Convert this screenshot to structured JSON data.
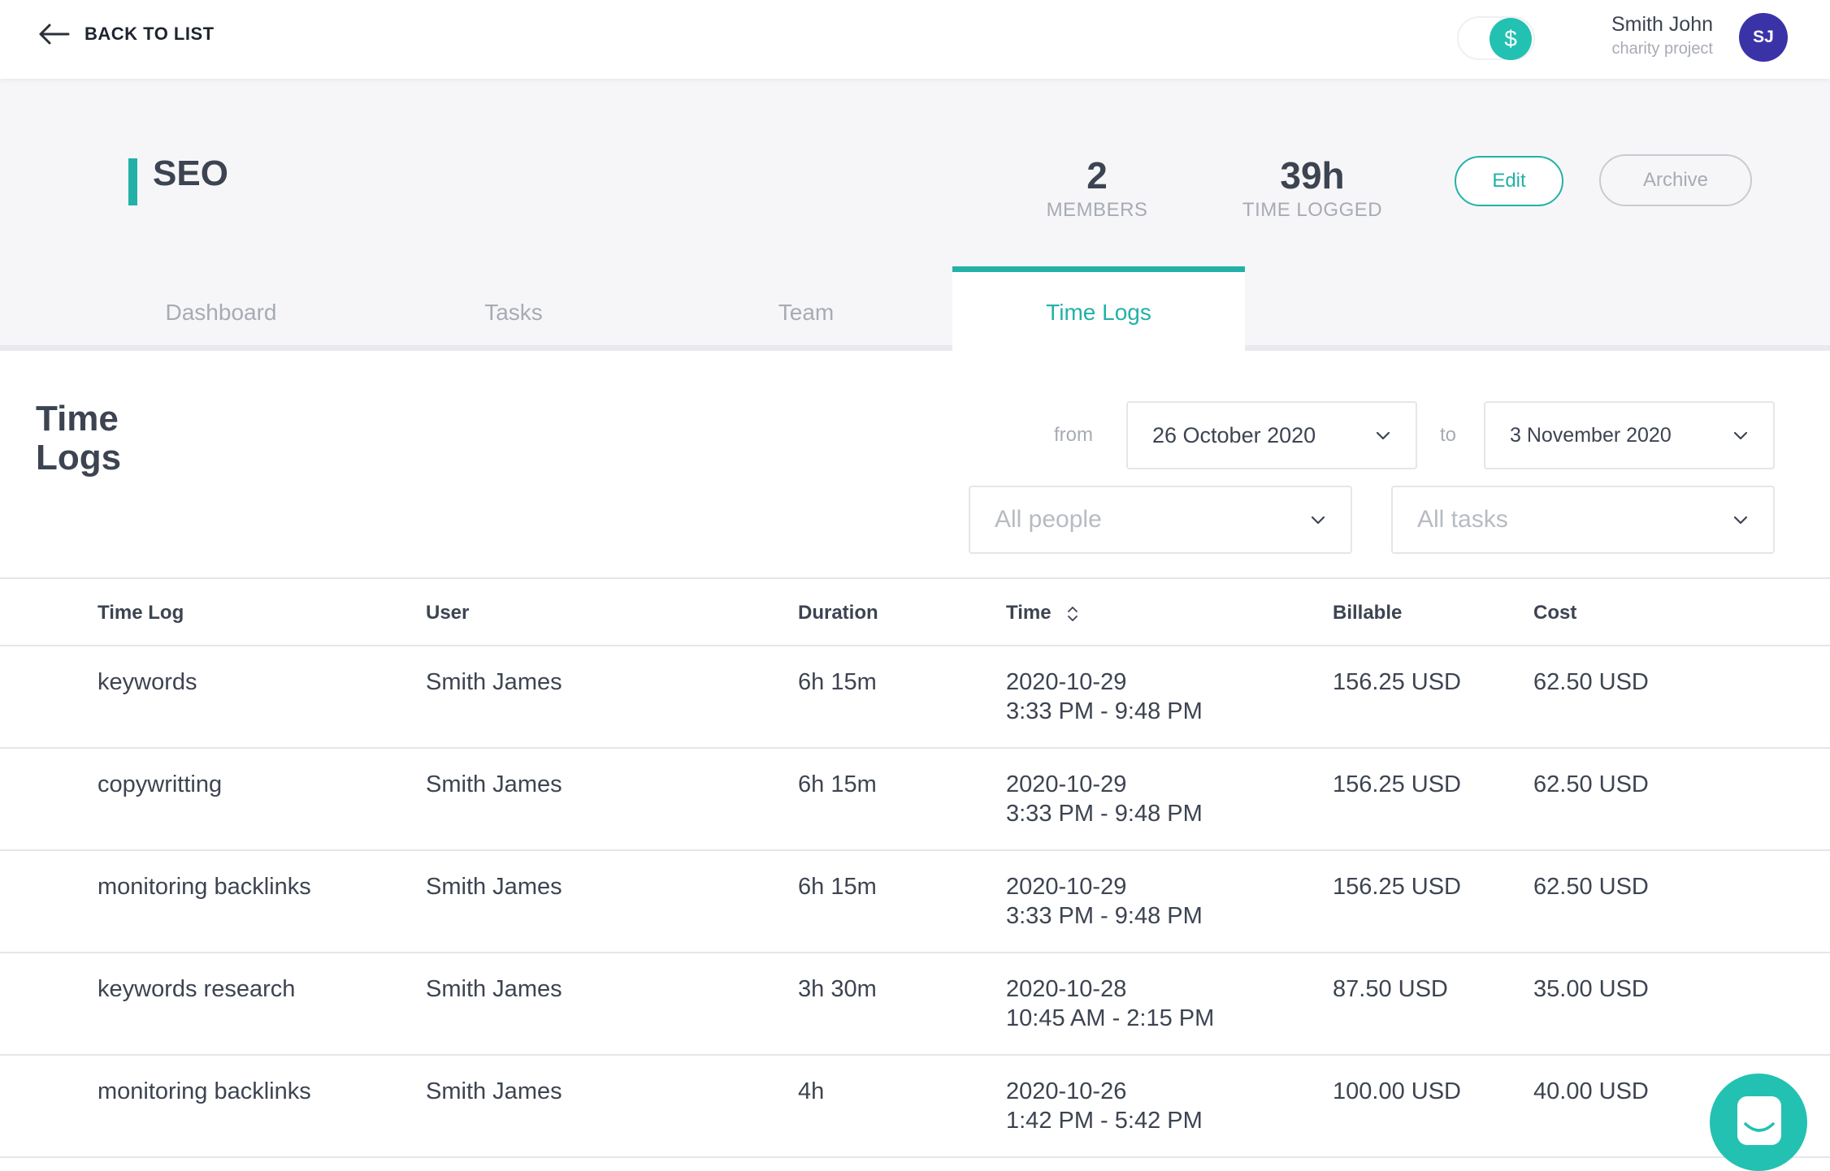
{
  "topbar": {
    "back_label": "BACK TO LIST",
    "toggle_symbol": "$",
    "user_name": "Smith John",
    "user_project": "charity project",
    "avatar_initials": "SJ"
  },
  "project": {
    "title": "SEO",
    "members_count": "2",
    "members_label": "MEMBERS",
    "time_logged": "39h",
    "time_logged_label": "TIME LOGGED",
    "edit_label": "Edit",
    "archive_label": "Archive"
  },
  "tabs": [
    {
      "label": "Dashboard",
      "active": false
    },
    {
      "label": "Tasks",
      "active": false
    },
    {
      "label": "Team",
      "active": false
    },
    {
      "label": "Time Logs",
      "active": true
    }
  ],
  "section": {
    "title_line1": "Time",
    "title_line2": "Logs"
  },
  "filters": {
    "from_label": "from",
    "from_value": "26 October 2020",
    "to_label": "to",
    "to_value": "3 November 2020",
    "people_placeholder": "All people",
    "tasks_placeholder": "All tasks"
  },
  "table": {
    "columns": [
      "Time Log",
      "User",
      "Duration",
      "Time",
      "Billable",
      "Cost"
    ],
    "rows": [
      {
        "log": "keywords",
        "user": "Smith James",
        "duration": "6h 15m",
        "date": "2020-10-29",
        "range": "3:33 PM - 9:48 PM",
        "billable": "156.25 USD",
        "cost": "62.50 USD"
      },
      {
        "log": "copywritting",
        "user": "Smith James",
        "duration": "6h 15m",
        "date": "2020-10-29",
        "range": "3:33 PM - 9:48 PM",
        "billable": "156.25 USD",
        "cost": "62.50 USD"
      },
      {
        "log": "monitoring backlinks",
        "user": "Smith James",
        "duration": "6h 15m",
        "date": "2020-10-29",
        "range": "3:33 PM - 9:48 PM",
        "billable": "156.25 USD",
        "cost": "62.50 USD"
      },
      {
        "log": "keywords research",
        "user": "Smith James",
        "duration": "3h 30m",
        "date": "2020-10-28",
        "range": "10:45 AM - 2:15 PM",
        "billable": "87.50 USD",
        "cost": "35.00 USD"
      },
      {
        "log": "monitoring backlinks",
        "user": "Smith James",
        "duration": "4h",
        "date": "2020-10-26",
        "range": "1:42 PM - 5:42 PM",
        "billable": "100.00 USD",
        "cost": "40.00 USD"
      }
    ]
  },
  "colors": {
    "accent": "#23b1a7",
    "avatar_bg": "#3a33a8",
    "text": "#3d4451",
    "muted": "#a7abb3"
  },
  "icons": {
    "back": "arrow-left-icon",
    "dropdown": "chevron-down-icon",
    "sort": "sort-icon",
    "chat": "chat-icon"
  }
}
